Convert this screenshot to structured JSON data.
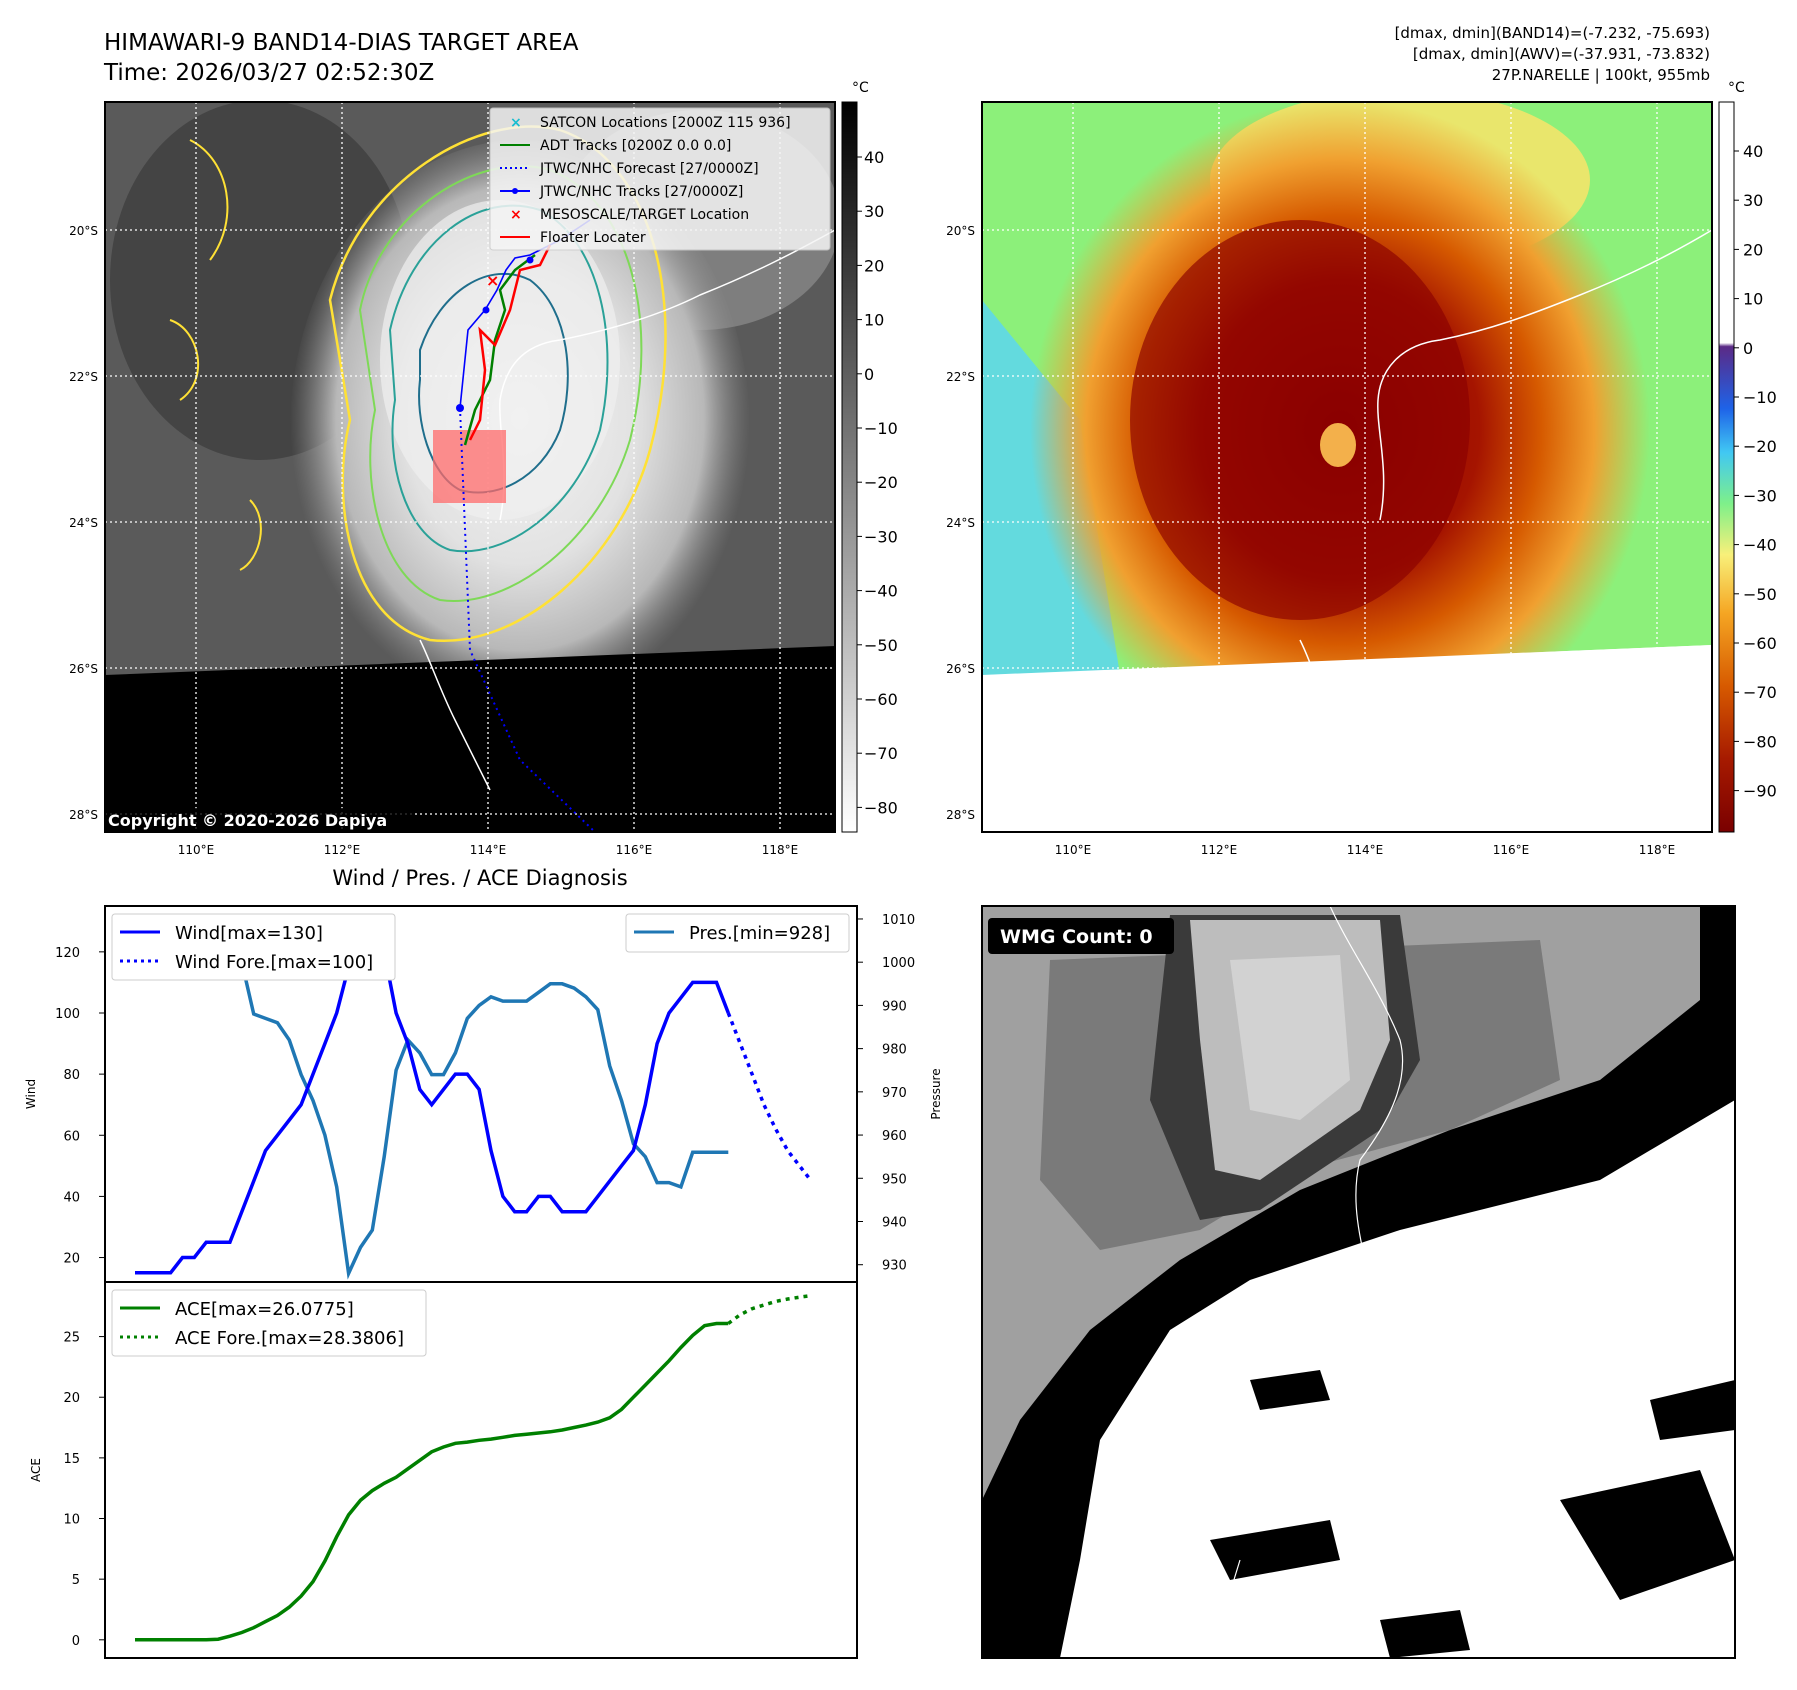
{
  "header": {
    "title_line1": "HIMAWARI-9 BAND14-DIAS TARGET AREA",
    "title_line2": "Time: 2026/03/27 02:52:30Z",
    "info_line1": "[dmax, dmin](BAND14)=(-7.232, -75.693)",
    "info_line2": "[dmax, dmin](AWV)=(-37.931, -73.832)",
    "info_line3": "27P.NARELLE | 100kt, 955mb"
  },
  "map_panels": {
    "lat_labels": [
      "20°S",
      "22°S",
      "24°S",
      "26°S",
      "28°S"
    ],
    "lon_labels": [
      "110°E",
      "112°E",
      "114°E",
      "116°E",
      "118°E"
    ],
    "copyright": "Copyright © 2020-2026 Dapiya",
    "colorbar_unit": "°C",
    "gray_colorbar_ticks": [
      "40",
      "30",
      "20",
      "10",
      "0",
      "−10",
      "−20",
      "−30",
      "−40",
      "−50",
      "−60",
      "−70",
      "−80"
    ],
    "color_colorbar_ticks": [
      "40",
      "30",
      "20",
      "10",
      "0",
      "−10",
      "−20",
      "−30",
      "−40",
      "−50",
      "−60",
      "−70",
      "−80",
      "−90"
    ],
    "legend": [
      {
        "label": "SATCON Locations [2000Z 115 936]",
        "color": "#17becf",
        "marker": "x"
      },
      {
        "label": "ADT Tracks [0200Z 0.0 0.0]",
        "color": "#008000",
        "marker": "line"
      },
      {
        "label": "JTWC/NHC Forecast [27/0000Z]",
        "color": "#0000ff",
        "marker": "dotted"
      },
      {
        "label": "JTWC/NHC Tracks [27/0000Z]",
        "color": "#0000ff",
        "marker": "line-dot"
      },
      {
        "label": "MESOSCALE/TARGET Location",
        "color": "#ff0000",
        "marker": "x"
      },
      {
        "label": "Floater Locater",
        "color": "#ff0000",
        "marker": "line"
      }
    ],
    "isotherm_colors": [
      "#ffe135",
      "#7ed957",
      "#2aa198",
      "#1f6e8c"
    ]
  },
  "diagnosis": {
    "title": "Wind / Pres. / ACE Diagnosis",
    "wind_ylabel": "Wind",
    "pres_ylabel": "Pressure",
    "ace_ylabel": "ACE",
    "wind_legend": [
      "Wind[max=130]",
      "Wind Fore.[max=100]"
    ],
    "pres_legend": [
      "Pres.[min=928]"
    ],
    "ace_legend": [
      "ACE[max=26.0775]",
      "ACE Fore.[max=28.3806]"
    ]
  },
  "wmg": {
    "label": "WMG Count: 0"
  },
  "chart_data": [
    {
      "type": "line",
      "title": "Wind / Pres. / ACE Diagnosis",
      "ylabel": "Wind",
      "ylim": [
        12,
        135
      ],
      "yticks": [
        20,
        40,
        60,
        80,
        100,
        120
      ],
      "series": [
        {
          "name": "Wind[max=130]",
          "color": "#0000ff",
          "style": "solid",
          "x": [
            0,
            1,
            2,
            3,
            4,
            5,
            6,
            7,
            8,
            9,
            10,
            11,
            12,
            13,
            14,
            15,
            16,
            17,
            18,
            19,
            20,
            21,
            22,
            23,
            24,
            25,
            26,
            27,
            28,
            29,
            30,
            31,
            32,
            33,
            34,
            35,
            36,
            37,
            38,
            39,
            40,
            41,
            42,
            43,
            44,
            45,
            46,
            47,
            48,
            49,
            50,
            51,
            52,
            53,
            54
          ],
          "values": [
            15,
            15,
            15,
            15,
            20,
            20,
            25,
            25,
            25,
            35,
            45,
            55,
            60,
            65,
            70,
            80,
            90,
            100,
            115,
            130,
            125,
            120,
            100,
            90,
            75,
            70,
            75,
            80,
            80,
            75,
            55,
            40,
            35,
            35,
            40,
            40,
            35,
            35,
            35,
            40,
            45,
            50,
            55,
            70,
            90,
            100,
            105,
            110,
            110,
            110,
            100,
            null,
            null,
            null,
            null
          ]
        },
        {
          "name": "Wind Fore.[max=100]",
          "color": "#0000ff",
          "style": "dotted",
          "x": [
            50,
            51,
            52,
            53,
            54,
            55,
            56,
            57
          ],
          "values": [
            100,
            90,
            80,
            70,
            62,
            55,
            50,
            45
          ]
        }
      ]
    },
    {
      "type": "line",
      "ylabel": "Pressure",
      "ylim": [
        926,
        1013
      ],
      "yticks": [
        930,
        940,
        950,
        960,
        970,
        980,
        990,
        1000,
        1010
      ],
      "series": [
        {
          "name": "Pres.[min=928]",
          "color": "#1f77b4",
          "style": "solid",
          "x": [
            0,
            1,
            2,
            3,
            4,
            5,
            6,
            7,
            8,
            9,
            10,
            11,
            12,
            13,
            14,
            15,
            16,
            17,
            18,
            19,
            20,
            21,
            22,
            23,
            24,
            25,
            26,
            27,
            28,
            29,
            30,
            31,
            32,
            33,
            34,
            35,
            36,
            37,
            38,
            39,
            40,
            41,
            42,
            43,
            44,
            45,
            46,
            47,
            48,
            49,
            50
          ],
          "values": [
            1009,
            1009,
            1009,
            1005,
            1005,
            1003,
            1003,
            1003,
            1003,
            1000,
            988,
            987,
            986,
            982,
            974,
            968,
            960,
            948,
            928,
            934,
            938,
            955,
            975,
            982,
            979,
            974,
            974,
            979,
            987,
            990,
            992,
            991,
            991,
            991,
            993,
            995,
            995,
            994,
            992,
            989,
            976,
            968,
            958,
            955,
            949,
            949,
            948,
            956,
            956,
            956,
            956
          ]
        }
      ]
    },
    {
      "type": "line",
      "ylabel": "ACE",
      "ylim": [
        -1.5,
        29.5
      ],
      "yticks": [
        0,
        5,
        10,
        15,
        20,
        25
      ],
      "series": [
        {
          "name": "ACE[max=26.0775]",
          "color": "#008000",
          "style": "solid",
          "x": [
            0,
            2,
            4,
            6,
            7,
            8,
            9,
            10,
            11,
            12,
            13,
            14,
            15,
            16,
            17,
            18,
            19,
            20,
            21,
            22,
            23,
            24,
            25,
            26,
            27,
            28,
            29,
            30,
            31,
            32,
            33,
            34,
            35,
            36,
            37,
            38,
            39,
            40,
            41,
            42,
            43,
            44,
            45,
            46,
            47,
            48,
            49,
            50
          ],
          "values": [
            0,
            0,
            0,
            0,
            0.05,
            0.3,
            0.6,
            1.0,
            1.5,
            2.0,
            2.7,
            3.6,
            4.8,
            6.5,
            8.5,
            10.3,
            11.5,
            12.3,
            12.9,
            13.4,
            14.1,
            14.8,
            15.5,
            15.9,
            16.2,
            16.3,
            16.45,
            16.55,
            16.7,
            16.85,
            16.95,
            17.05,
            17.15,
            17.3,
            17.5,
            17.7,
            17.95,
            18.3,
            19.0,
            20.0,
            21.0,
            22.0,
            23.0,
            24.1,
            25.1,
            25.9,
            26.0775,
            26.0775
          ]
        },
        {
          "name": "ACE Fore.[max=28.3806]",
          "color": "#008000",
          "style": "dotted",
          "x": [
            50,
            51,
            52,
            53,
            54,
            55,
            56,
            57
          ],
          "values": [
            26.0775,
            26.8,
            27.3,
            27.6,
            27.9,
            28.1,
            28.25,
            28.3806
          ]
        }
      ]
    }
  ]
}
